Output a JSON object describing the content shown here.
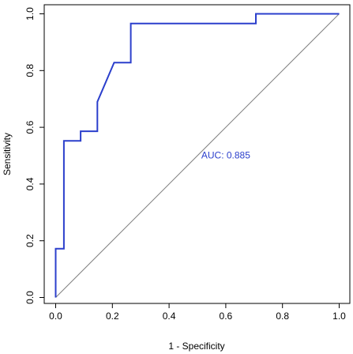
{
  "chart_data": {
    "type": "line",
    "title": "",
    "xlabel": "1 - Specificity",
    "ylabel": "Sensitivity",
    "xlim": [
      0,
      1
    ],
    "ylim": [
      0,
      1
    ],
    "xticks": [
      "0.0",
      "0.2",
      "0.4",
      "0.6",
      "0.8",
      "1.0"
    ],
    "yticks": [
      "0.0",
      "0.2",
      "0.4",
      "0.6",
      "0.8",
      "1.0"
    ],
    "grid": false,
    "series": [
      {
        "color": "#2b3fcc",
        "x": [
          0.0,
          0.0,
          0.0,
          0.029,
          0.029,
          0.029,
          0.088,
          0.088,
          0.147,
          0.147,
          0.206,
          0.265,
          0.265,
          0.706,
          0.706,
          1.0
        ],
        "y": [
          0.0,
          0.172,
          0.172,
          0.172,
          0.552,
          0.552,
          0.552,
          0.586,
          0.586,
          0.69,
          0.828,
          0.828,
          0.966,
          0.966,
          1.0,
          1.0
        ]
      }
    ],
    "reference_line": {
      "x": [
        0,
        1
      ],
      "y": [
        0,
        1
      ],
      "color": "#808080"
    },
    "annotation": {
      "text": "AUC: 0.885",
      "x": 0.6,
      "y": 0.49,
      "color": "#2b3fcc"
    }
  }
}
